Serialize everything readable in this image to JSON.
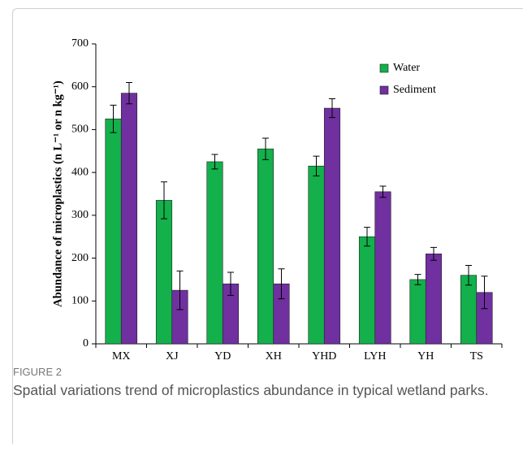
{
  "chart_data": {
    "type": "bar",
    "figure_label": "FIGURE 2",
    "caption": "Spatial variations trend of microplastics abundance in typical wetland parks.",
    "ylabel": "Abundance of microplastics (n L⁻¹ or n kg⁻¹)",
    "categories": [
      "MX",
      "XJ",
      "YD",
      "XH",
      "YHD",
      "LYH",
      "YH",
      "TS"
    ],
    "series": [
      {
        "name": "Water",
        "color": "#13b04b",
        "values": [
          525,
          335,
          425,
          455,
          415,
          250,
          150,
          160
        ],
        "errors": [
          32,
          43,
          17,
          25,
          23,
          22,
          12,
          23
        ]
      },
      {
        "name": "Sediment",
        "color": "#7030a0",
        "values": [
          585,
          125,
          140,
          140,
          550,
          355,
          210,
          120
        ],
        "errors": [
          25,
          45,
          27,
          35,
          22,
          13,
          15,
          38
        ]
      }
    ],
    "ylim": [
      0,
      700
    ],
    "yticks": [
      0,
      100,
      200,
      300,
      400,
      500,
      600,
      700
    ],
    "legend": "top-right"
  }
}
